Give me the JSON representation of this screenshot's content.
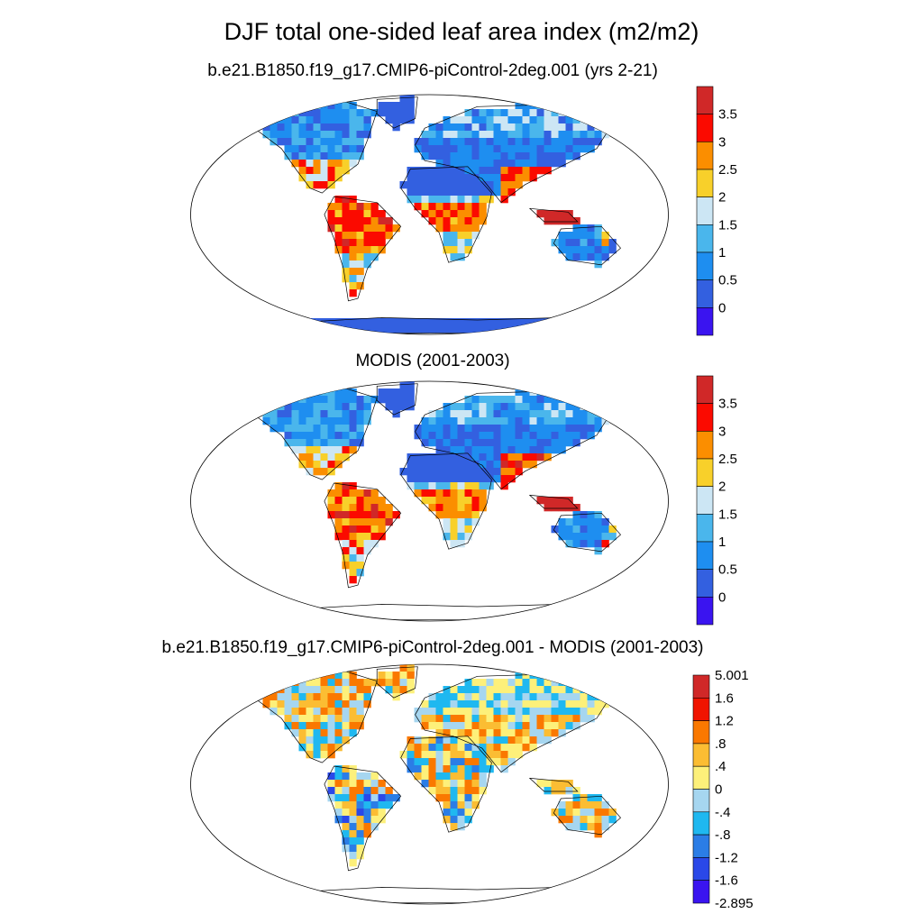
{
  "title": "DJF total one-sided leaf area index (m2/m2)",
  "colors": {
    "lai": [
      "#3a14f0",
      "#3360e0",
      "#1e8ef0",
      "#4ab6ec",
      "#cce6f4",
      "#f8d02a",
      "#fb8e00",
      "#fb0a00",
      "#d02828"
    ],
    "diff": [
      "#3a14f0",
      "#2a48e8",
      "#2b7de6",
      "#1fb8f0",
      "#a6d6f0",
      "#fdf07a",
      "#fbbd33",
      "#fa7800",
      "#f01400",
      "#d02828"
    ],
    "ocean": "#ffffff",
    "land_low": "#3360e0"
  },
  "chart_data": [
    {
      "type": "heatmap",
      "projection": "robinson",
      "title": "b.e21.B1850.f19_g17.CMIP6-piControl-2deg.001 (yrs 2-21)",
      "colorbar": {
        "tick_labels": [
          "3.5",
          "3",
          "2.5",
          "2",
          "1.5",
          "1",
          "0.5",
          "0"
        ],
        "bins": 9
      }
    },
    {
      "type": "heatmap",
      "projection": "robinson",
      "title": "MODIS (2001-2003)",
      "colorbar": {
        "tick_labels": [
          "3.5",
          "3",
          "2.5",
          "2",
          "1.5",
          "1",
          "0.5",
          "0"
        ],
        "bins": 9
      }
    },
    {
      "type": "heatmap",
      "projection": "robinson",
      "title": "b.e21.B1850.f19_g17.CMIP6-piControl-2deg.001 - MODIS (2001-2003)",
      "colorbar": {
        "tick_labels": [
          "5.001",
          "1.6",
          "1.2",
          ".8",
          ".4",
          "0",
          "-.4",
          "-.8",
          "-1.2",
          "-1.6",
          "-2.895"
        ],
        "bins": 10
      }
    }
  ]
}
